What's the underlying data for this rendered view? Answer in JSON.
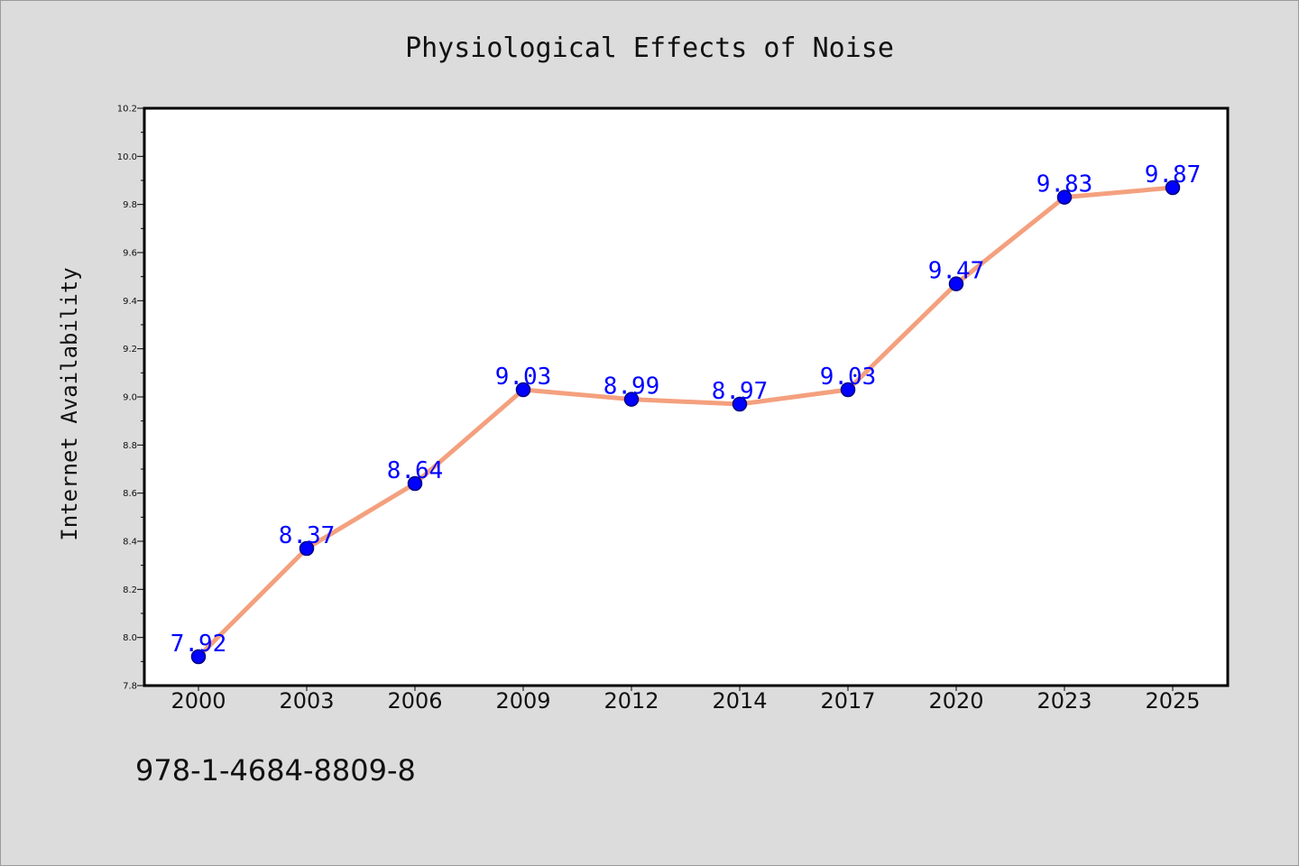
{
  "chart_data": {
    "type": "line",
    "title": "Physiological Effects of Noise",
    "xlabel": "",
    "ylabel": "Internet Availability",
    "categories": [
      "2000",
      "2003",
      "2006",
      "2009",
      "2012",
      "2014",
      "2017",
      "2020",
      "2023",
      "2025"
    ],
    "series": [
      {
        "values": [
          7.92,
          8.37,
          8.64,
          9.03,
          8.99,
          8.97,
          9.03,
          9.47,
          9.83,
          9.87
        ]
      }
    ],
    "data_labels": [
      "7.92",
      "8.37",
      "8.64",
      "9.03",
      "8.99",
      "8.97",
      "9.03",
      "9.47",
      "9.83",
      "9.87"
    ],
    "ylim": [
      7.8,
      10.2
    ],
    "yticks": [
      "7.8",
      "8.0",
      "8.2",
      "8.4",
      "8.6",
      "8.8",
      "9.0",
      "9.2",
      "9.4",
      "9.6",
      "9.8",
      "10.0",
      "10.2"
    ],
    "grid": false,
    "legend": "none",
    "colors": {
      "line": "#f4a07e",
      "marker": "#0000ff",
      "marker_edge": "#000080",
      "label": "#0000ff",
      "background": "#dcdcdc",
      "plot_bg": "#ffffff"
    }
  },
  "footnote": "978-1-4684-8809-8"
}
